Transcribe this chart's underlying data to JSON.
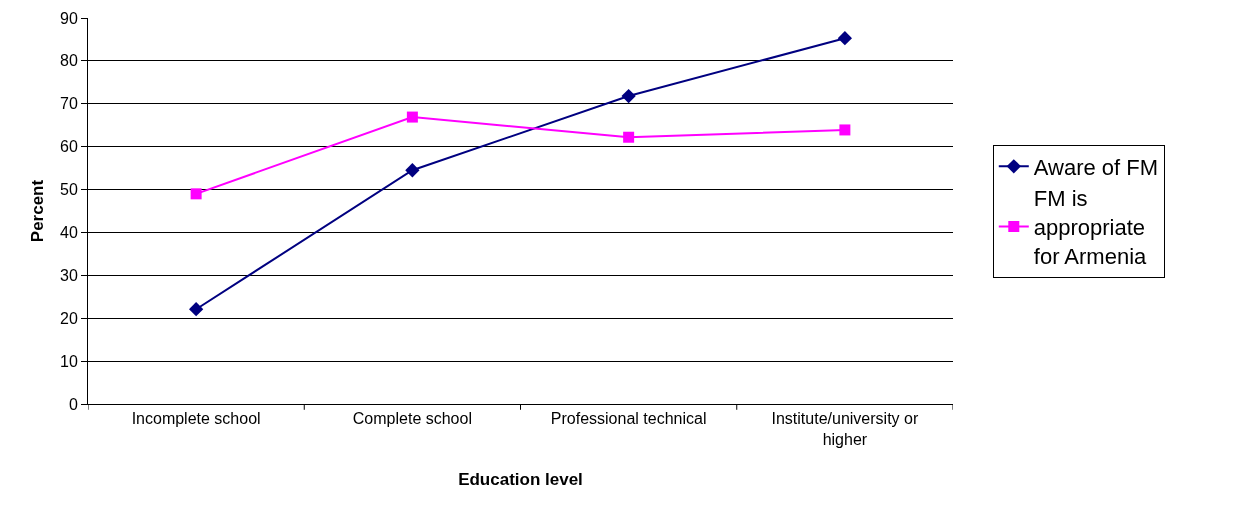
{
  "chart_data": {
    "type": "line",
    "xlabel": "Education level",
    "ylabel": "Percent",
    "categories": [
      "Incomplete school",
      "Complete school",
      "Professional technical",
      "Institute/university or higher"
    ],
    "series": [
      {
        "name": "Aware of FM",
        "color": "#000080",
        "marker": "diamond",
        "values": [
          22.1,
          54.5,
          71.8,
          85.3
        ]
      },
      {
        "name": "FM is appropriate for Armenia",
        "color": "#ff00ff",
        "marker": "square",
        "values": [
          49,
          66.9,
          62.2,
          63.9
        ]
      }
    ],
    "ylim": [
      0,
      90
    ],
    "yticks": [
      0,
      10,
      20,
      30,
      40,
      50,
      60,
      70,
      80,
      90
    ],
    "grid": "y",
    "legend": "right",
    "line_style": "solid"
  }
}
